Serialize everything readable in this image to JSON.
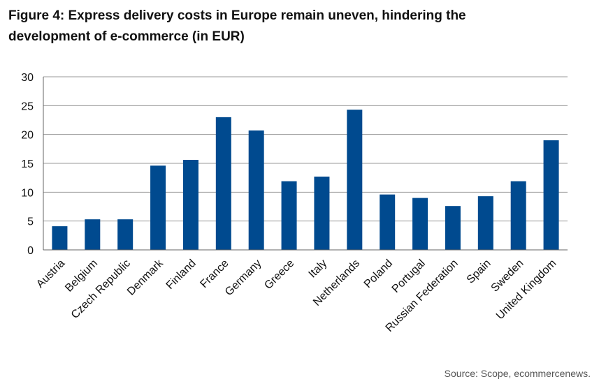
{
  "chart_data": {
    "type": "bar",
    "title": "Figure 4: Express delivery costs in Europe remain uneven, hindering the development of e-commerce (in EUR)",
    "source": "Source: Scope, ecommercenews.",
    "categories": [
      "Austria",
      "Belgium",
      "Czech Republic",
      "Denmark",
      "Finland",
      "France",
      "Germany",
      "Greece",
      "Italy",
      "Netherlands",
      "Poland",
      "Portugal",
      "Russian Federation",
      "Spain",
      "Sweden",
      "United Kingdom"
    ],
    "values": [
      4.1,
      5.3,
      5.3,
      14.6,
      15.6,
      23.0,
      20.7,
      11.9,
      12.7,
      24.3,
      9.6,
      9.0,
      7.6,
      9.3,
      11.9,
      19.0
    ],
    "color": "#004a8f",
    "ylim": [
      0,
      30
    ],
    "yticks": [
      0,
      5,
      10,
      15,
      20,
      25,
      30
    ],
    "grid": true
  }
}
